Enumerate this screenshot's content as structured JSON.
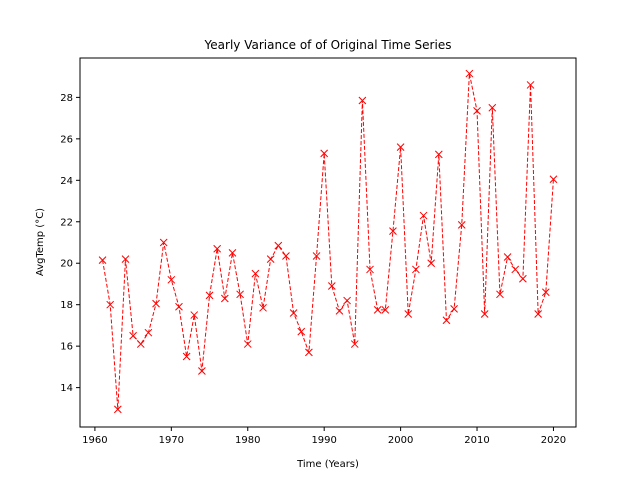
{
  "chart_data": {
    "type": "line",
    "title": "Yearly Variance of of Original Time Series",
    "xlabel": "Time (Years)",
    "ylabel": "AvgTemp (°C)",
    "xlim": [
      1958.05,
      2022.95
    ],
    "ylim": [
      12.1,
      29.9
    ],
    "xticks": [
      1960,
      1970,
      1980,
      1990,
      2000,
      2010,
      2020
    ],
    "yticks": [
      14,
      16,
      18,
      20,
      22,
      24,
      26,
      28
    ],
    "grid": false,
    "series": [
      {
        "color": "#ff0000",
        "line_style": "dashed",
        "marker": "x",
        "x": [
          1961,
          1962,
          1963,
          1964,
          1965,
          1966,
          1967,
          1968,
          1969,
          1970,
          1971,
          1972,
          1973,
          1974,
          1975,
          1976,
          1977,
          1978,
          1979,
          1980,
          1981,
          1982,
          1983,
          1984,
          1985,
          1986,
          1987,
          1988,
          1989,
          1990,
          1991,
          1992,
          1993,
          1994,
          1995,
          1996,
          1997,
          1998,
          1999,
          2000,
          2001,
          2002,
          2003,
          2004,
          2005,
          2006,
          2007,
          2008,
          2009,
          2010,
          2011,
          2012,
          2013,
          2014,
          2015,
          2016,
          2017,
          2018,
          2019,
          2020
        ],
        "y": [
          20.15,
          18.0,
          12.95,
          20.2,
          16.5,
          16.1,
          16.65,
          18.05,
          21.0,
          19.2,
          17.9,
          15.5,
          17.5,
          14.8,
          18.45,
          20.7,
          18.3,
          20.5,
          18.5,
          16.1,
          19.5,
          17.85,
          20.2,
          20.85,
          20.35,
          17.6,
          16.7,
          15.7,
          20.35,
          25.3,
          18.9,
          17.7,
          18.2,
          16.1,
          27.85,
          19.7,
          17.75,
          17.75,
          21.55,
          25.6,
          17.55,
          19.7,
          22.3,
          20.0,
          25.25,
          17.25,
          17.8,
          21.85,
          29.15,
          27.35,
          17.55,
          27.5,
          18.5,
          20.3,
          19.7,
          19.25,
          28.6,
          17.55,
          18.6,
          24.05
        ]
      }
    ]
  }
}
